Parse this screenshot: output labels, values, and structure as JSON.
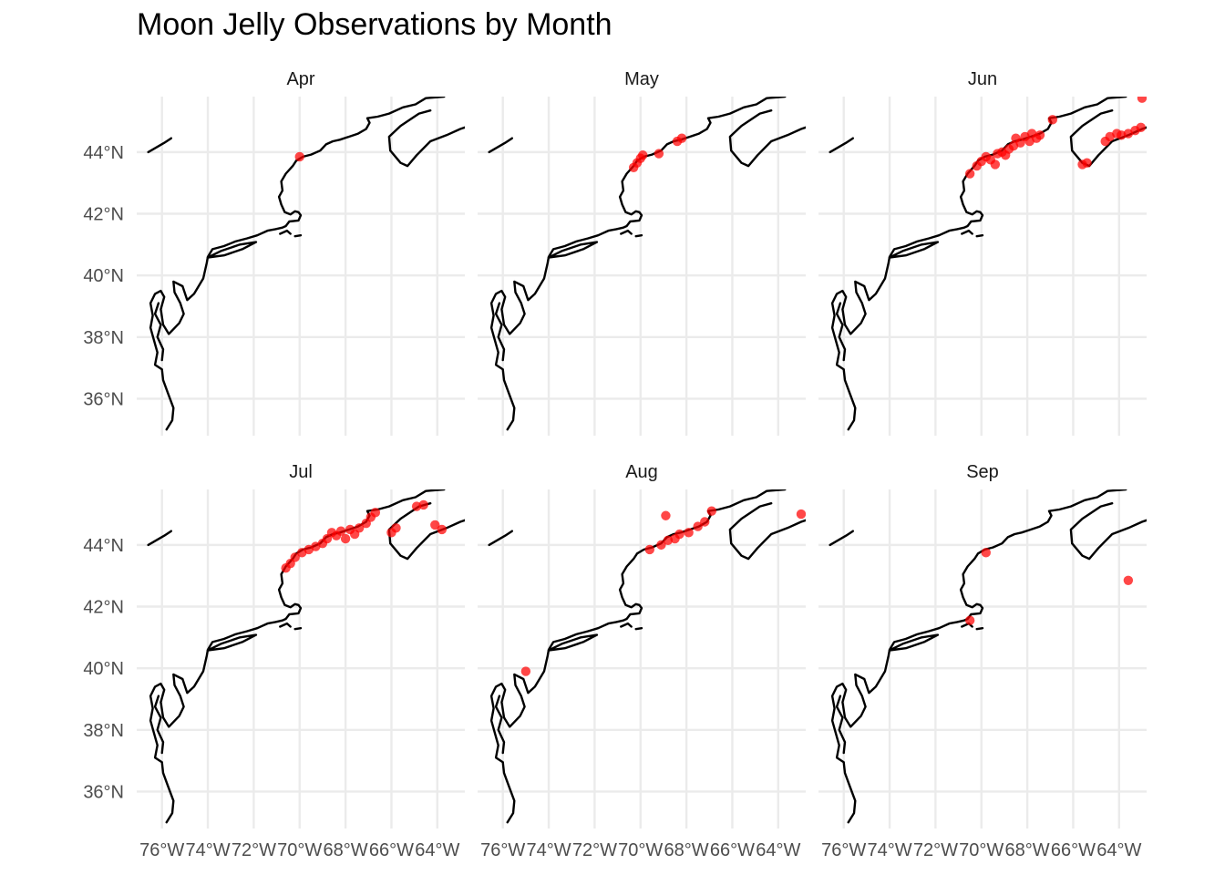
{
  "chart_data": {
    "type": "scatter",
    "title": "Moon Jelly Observations by Month",
    "xlabel": "",
    "ylabel": "",
    "grid": true,
    "facet_layout": "3 columns x 2 rows",
    "xlim": [
      -77.1,
      -62.8
    ],
    "ylim": [
      34.8,
      45.8
    ],
    "x_ticks": [
      -76,
      -74,
      -72,
      -70,
      -68,
      -66,
      -64
    ],
    "x_tick_labels": [
      "76°W",
      "74°W",
      "72°W",
      "70°W",
      "68°W",
      "66°W",
      "64°W"
    ],
    "y_ticks": [
      36,
      38,
      40,
      42,
      44
    ],
    "y_tick_labels": [
      "36°N",
      "38°N",
      "40°N",
      "42°N",
      "44°N"
    ],
    "point_color": "#ff0000",
    "coastline_color": "#000000",
    "series": [
      {
        "facet": "Apr",
        "points": [
          [
            -70.0,
            43.85
          ]
        ]
      },
      {
        "facet": "May",
        "points": [
          [
            -70.3,
            43.5
          ],
          [
            -70.15,
            43.65
          ],
          [
            -70.0,
            43.8
          ],
          [
            -69.9,
            43.9
          ],
          [
            -69.2,
            43.95
          ],
          [
            -68.4,
            44.35
          ],
          [
            -68.2,
            44.45
          ]
        ]
      },
      {
        "facet": "Jun",
        "points": [
          [
            -70.5,
            43.3
          ],
          [
            -70.2,
            43.55
          ],
          [
            -70.0,
            43.7
          ],
          [
            -69.8,
            43.85
          ],
          [
            -69.6,
            43.75
          ],
          [
            -69.4,
            43.6
          ],
          [
            -69.3,
            43.95
          ],
          [
            -69.1,
            44.0
          ],
          [
            -68.95,
            43.9
          ],
          [
            -68.8,
            44.1
          ],
          [
            -68.6,
            44.2
          ],
          [
            -68.5,
            44.45
          ],
          [
            -68.3,
            44.3
          ],
          [
            -68.1,
            44.5
          ],
          [
            -67.9,
            44.35
          ],
          [
            -67.8,
            44.6
          ],
          [
            -67.6,
            44.45
          ],
          [
            -67.45,
            44.55
          ],
          [
            -66.9,
            45.05
          ],
          [
            -65.6,
            43.6
          ],
          [
            -65.4,
            43.65
          ],
          [
            -64.6,
            44.35
          ],
          [
            -64.4,
            44.5
          ],
          [
            -64.1,
            44.6
          ],
          [
            -63.9,
            44.55
          ],
          [
            -63.6,
            44.6
          ],
          [
            -63.3,
            44.7
          ],
          [
            -63.05,
            44.8
          ],
          [
            -63.0,
            45.75
          ]
        ]
      },
      {
        "facet": "Jul",
        "points": [
          [
            -70.6,
            43.25
          ],
          [
            -70.4,
            43.4
          ],
          [
            -70.2,
            43.6
          ],
          [
            -69.9,
            43.75
          ],
          [
            -69.6,
            43.85
          ],
          [
            -69.3,
            43.95
          ],
          [
            -69.0,
            44.05
          ],
          [
            -68.8,
            44.2
          ],
          [
            -68.6,
            44.4
          ],
          [
            -68.4,
            44.3
          ],
          [
            -68.2,
            44.45
          ],
          [
            -68.0,
            44.2
          ],
          [
            -67.8,
            44.5
          ],
          [
            -67.6,
            44.35
          ],
          [
            -67.4,
            44.55
          ],
          [
            -67.1,
            44.7
          ],
          [
            -66.9,
            44.9
          ],
          [
            -66.7,
            45.05
          ],
          [
            -66.0,
            44.4
          ],
          [
            -65.8,
            44.55
          ],
          [
            -64.9,
            45.25
          ],
          [
            -64.6,
            45.3
          ],
          [
            -64.1,
            44.65
          ],
          [
            -63.8,
            44.5
          ]
        ]
      },
      {
        "facet": "Aug",
        "points": [
          [
            -75.0,
            39.9
          ],
          [
            -69.6,
            43.85
          ],
          [
            -69.1,
            44.0
          ],
          [
            -68.9,
            44.95
          ],
          [
            -68.8,
            44.15
          ],
          [
            -68.5,
            44.2
          ],
          [
            -68.3,
            44.35
          ],
          [
            -67.9,
            44.4
          ],
          [
            -67.5,
            44.6
          ],
          [
            -67.2,
            44.75
          ],
          [
            -66.9,
            45.1
          ],
          [
            -63.0,
            45.0
          ]
        ]
      },
      {
        "facet": "Sep",
        "points": [
          [
            -70.5,
            41.55
          ],
          [
            -69.8,
            43.75
          ],
          [
            -63.6,
            42.85
          ]
        ]
      }
    ]
  }
}
